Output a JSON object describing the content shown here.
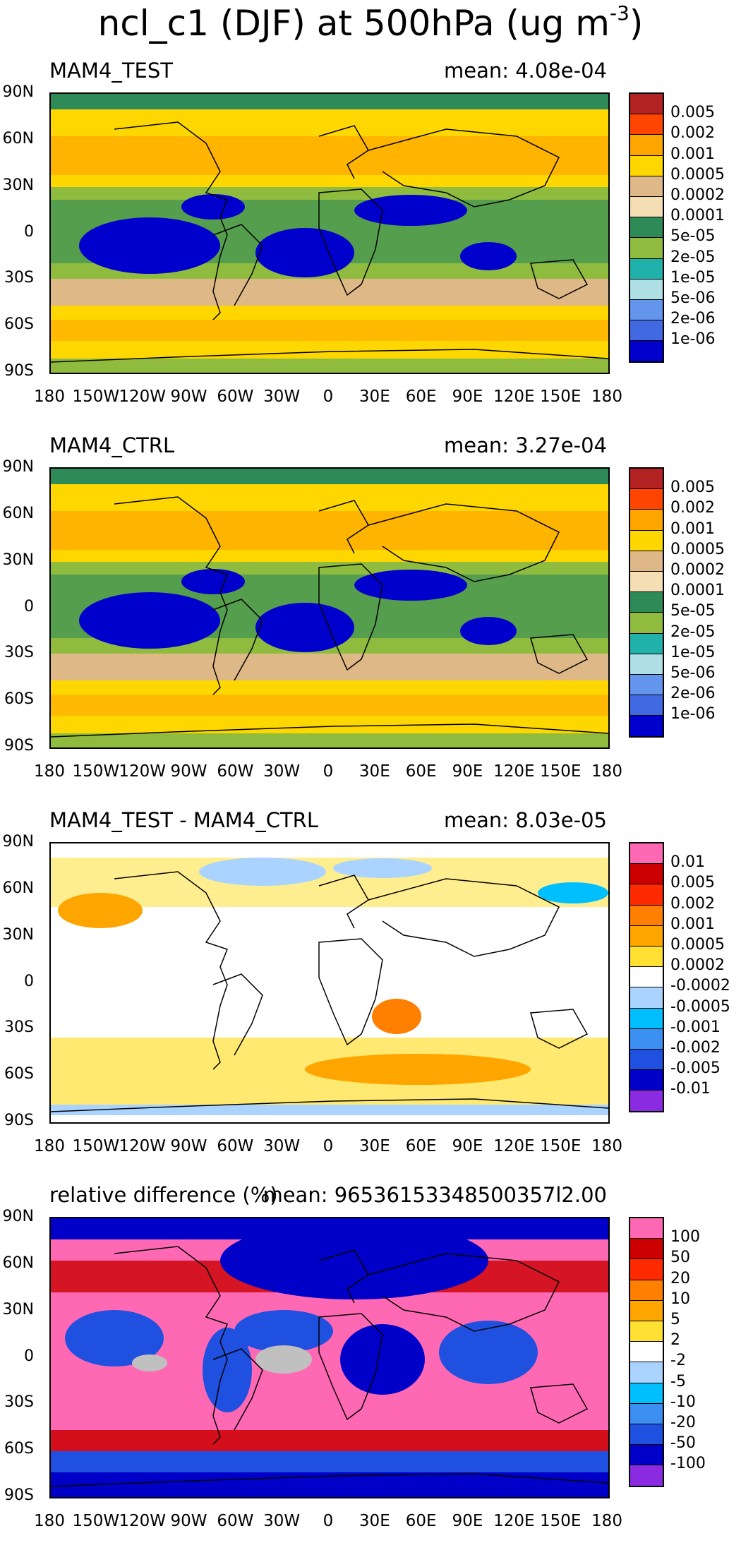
{
  "figure": {
    "title": "ncl_c1 (DJF) at 500hPa (ug m",
    "title_exponent": "-3",
    "title_close": ")"
  },
  "axes": {
    "lat_labels": [
      "90N",
      "60N",
      "30N",
      "0",
      "30S",
      "60S",
      "90S"
    ],
    "lon_labels": [
      "180",
      "150W",
      "120W",
      "90W",
      "60W",
      "30W",
      "0",
      "30E",
      "60E",
      "90E",
      "120E",
      "150E",
      "180"
    ]
  },
  "panels": [
    {
      "title": "MAM4_TEST",
      "mean": "mean: 4.08e-04",
      "colorbar": {
        "labels": [
          "0.005",
          "0.002",
          "0.001",
          "0.0005",
          "0.0002",
          "0.0001",
          "5e-05",
          "2e-05",
          "1e-05",
          "5e-06",
          "2e-06",
          "1e-06"
        ],
        "colors": [
          "#b22222",
          "#ff4500",
          "#ffa500",
          "#ffd700",
          "#deb887",
          "#f5deb3",
          "#2e8b57",
          "#8fbc3f",
          "#20b2aa",
          "#aee0e6",
          "#6495ed",
          "#4169e1",
          "#0000cd"
        ]
      }
    },
    {
      "title": "MAM4_CTRL",
      "mean": "mean: 3.27e-04",
      "colorbar": {
        "labels": [
          "0.005",
          "0.002",
          "0.001",
          "0.0005",
          "0.0002",
          "0.0001",
          "5e-05",
          "2e-05",
          "1e-05",
          "5e-06",
          "2e-06",
          "1e-06"
        ],
        "colors": [
          "#b22222",
          "#ff4500",
          "#ffa500",
          "#ffd700",
          "#deb887",
          "#f5deb3",
          "#2e8b57",
          "#8fbc3f",
          "#20b2aa",
          "#aee0e6",
          "#6495ed",
          "#4169e1",
          "#0000cd"
        ]
      }
    },
    {
      "title": "MAM4_TEST - MAM4_CTRL",
      "mean": "mean: 8.03e-05",
      "colorbar": {
        "labels": [
          "0.01",
          "0.005",
          "0.002",
          "0.001",
          "0.0005",
          "0.0002",
          "-0.0002",
          "-0.0005",
          "-0.001",
          "-0.002",
          "-0.005",
          "-0.01"
        ],
        "colors": [
          "#ff69b4",
          "#cc0000",
          "#ff2a00",
          "#ff7f00",
          "#ffa500",
          "#ffe033",
          "#ffffff",
          "#aad4ff",
          "#00bfff",
          "#3a8ff0",
          "#2050e0",
          "#0000c8",
          "#8a2be2"
        ]
      }
    },
    {
      "title": "relative difference (%)",
      "mean": "mean: 96536153348500357l2.00",
      "colorbar": {
        "labels": [
          "100",
          "50",
          "20",
          "10",
          "5",
          "2",
          "-2",
          "-5",
          "-10",
          "-20",
          "-50",
          "-100"
        ],
        "colors": [
          "#ff69b4",
          "#cc0000",
          "#ff2a00",
          "#ff7f00",
          "#ffa500",
          "#ffe033",
          "#ffffff",
          "#aad4ff",
          "#00bfff",
          "#3a8ff0",
          "#2050e0",
          "#0000c8",
          "#8a2be2"
        ]
      }
    }
  ],
  "chart_data": [
    {
      "type": "heatmap",
      "title": "MAM4_TEST",
      "variable": "ncl_c1 (DJF) at 500hPa (ug m-3)",
      "mean": 0.000408,
      "xlim": [
        -180,
        180
      ],
      "ylim": [
        -90,
        90
      ],
      "levels": [
        1e-06,
        2e-06,
        5e-06,
        1e-05,
        2e-05,
        5e-05,
        0.0001,
        0.0002,
        0.0005,
        0.001,
        0.002,
        0.005
      ]
    },
    {
      "type": "heatmap",
      "title": "MAM4_CTRL",
      "variable": "ncl_c1 (DJF) at 500hPa (ug m-3)",
      "mean": 0.000327,
      "xlim": [
        -180,
        180
      ],
      "ylim": [
        -90,
        90
      ],
      "levels": [
        1e-06,
        2e-06,
        5e-06,
        1e-05,
        2e-05,
        5e-05,
        0.0001,
        0.0002,
        0.0005,
        0.001,
        0.002,
        0.005
      ]
    },
    {
      "type": "heatmap",
      "title": "MAM4_TEST - MAM4_CTRL",
      "mean": 8.03e-05,
      "xlim": [
        -180,
        180
      ],
      "ylim": [
        -90,
        90
      ],
      "levels": [
        -0.01,
        -0.005,
        -0.002,
        -0.001,
        -0.0005,
        -0.0002,
        0.0002,
        0.0005,
        0.001,
        0.002,
        0.005,
        0.01
      ]
    },
    {
      "type": "heatmap",
      "title": "relative difference (%)",
      "mean": 9.653615334850036e+18,
      "xlim": [
        -180,
        180
      ],
      "ylim": [
        -90,
        90
      ],
      "levels": [
        -100,
        -50,
        -20,
        -10,
        -5,
        -2,
        2,
        5,
        10,
        20,
        50,
        100
      ]
    }
  ]
}
